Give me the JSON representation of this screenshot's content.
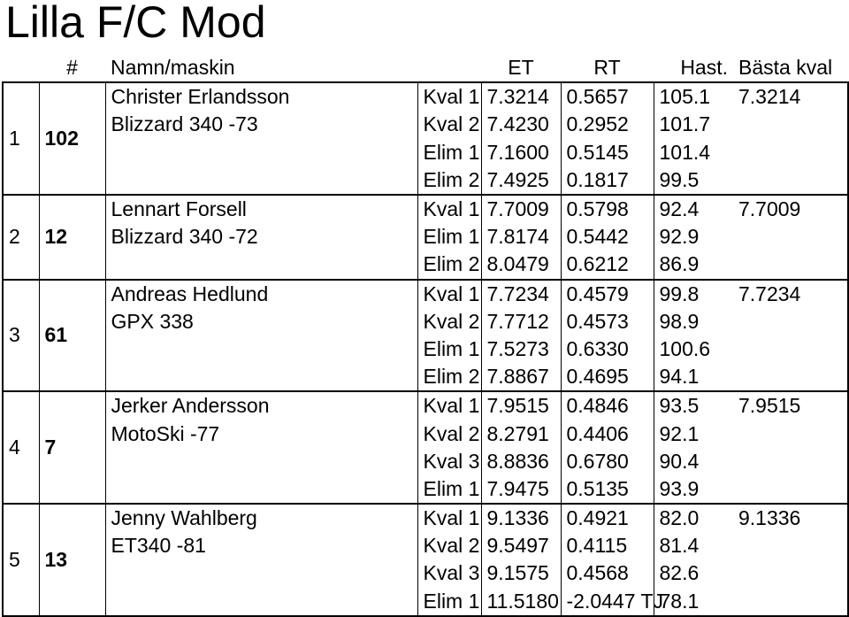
{
  "title": "Lilla F/C Mod",
  "headers": {
    "num": "#",
    "name": "Namn/maskin",
    "et": "ET",
    "rt": "RT",
    "hast": "Hast.",
    "best": "Bästa kval"
  },
  "entries": [
    {
      "rank": "1",
      "num": "102",
      "name": "Christer Erlandsson",
      "machine": "Blizzard 340 -73",
      "best": "7.3214",
      "runs": [
        {
          "label": "Kval 1",
          "et": "7.3214",
          "rt": "0.5657",
          "hast": "105.1"
        },
        {
          "label": "Kval 2",
          "et": "7.4230",
          "rt": "0.2952",
          "hast": "101.7"
        },
        {
          "label": "Elim 1",
          "et": "7.1600",
          "rt": "0.5145",
          "hast": "101.4"
        },
        {
          "label": "Elim 2",
          "et": "7.4925",
          "rt": "0.1817",
          "hast": "99.5"
        }
      ]
    },
    {
      "rank": "2",
      "num": "12",
      "name": "Lennart Forsell",
      "machine": "Blizzard 340 -72",
      "best": "7.7009",
      "runs": [
        {
          "label": "Kval 1",
          "et": "7.7009",
          "rt": "0.5798",
          "hast": "92.4"
        },
        {
          "label": "Elim 1",
          "et": "7.8174",
          "rt": "0.5442",
          "hast": "92.9"
        },
        {
          "label": "Elim 2",
          "et": "8.0479",
          "rt": "0.6212",
          "hast": "86.9"
        }
      ]
    },
    {
      "rank": "3",
      "num": "61",
      "name": "Andreas Hedlund",
      "machine": "GPX 338",
      "best": "7.7234",
      "runs": [
        {
          "label": "Kval 1",
          "et": "7.7234",
          "rt": "0.4579",
          "hast": "99.8"
        },
        {
          "label": "Kval 2",
          "et": "7.7712",
          "rt": "0.4573",
          "hast": "98.9"
        },
        {
          "label": "Elim 1",
          "et": "7.5273",
          "rt": "0.6330",
          "hast": "100.6"
        },
        {
          "label": "Elim 2",
          "et": "7.8867",
          "rt": "0.4695",
          "hast": "94.1"
        }
      ]
    },
    {
      "rank": "4",
      "num": "7",
      "name": "Jerker Andersson",
      "machine": "MotoSki -77",
      "best": "7.9515",
      "runs": [
        {
          "label": "Kval 1",
          "et": "7.9515",
          "rt": "0.4846",
          "hast": "93.5"
        },
        {
          "label": "Kval 2",
          "et": "8.2791",
          "rt": "0.4406",
          "hast": "92.1"
        },
        {
          "label": "Kval 3",
          "et": "8.8836",
          "rt": "0.6780",
          "hast": "90.4"
        },
        {
          "label": "Elim 1",
          "et": "7.9475",
          "rt": "0.5135",
          "hast": "93.9"
        }
      ]
    },
    {
      "rank": "5",
      "num": "13",
      "name": "Jenny Wahlberg",
      "machine": "ET340 -81",
      "best": "9.1336",
      "runs": [
        {
          "label": "Kval 1",
          "et": "9.1336",
          "rt": "0.4921",
          "hast": "82.0"
        },
        {
          "label": "Kval 2",
          "et": "9.5497",
          "rt": "0.4115",
          "hast": "81.4"
        },
        {
          "label": "Kval 3",
          "et": "9.1575",
          "rt": "0.4568",
          "hast": "82.6"
        },
        {
          "label": "Elim 1",
          "et": "11.5180",
          "rt": "-2.0447 TJ",
          "hast": "78.1"
        }
      ]
    }
  ]
}
